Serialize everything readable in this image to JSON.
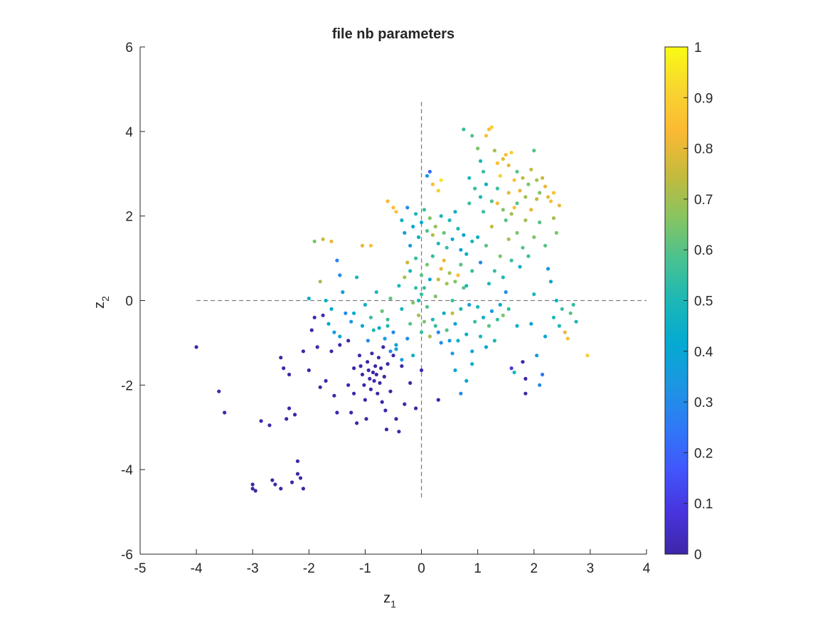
{
  "chart_data": {
    "type": "scatter",
    "title": "file nb parameters",
    "xlabel": {
      "base": "z",
      "sub": "1"
    },
    "ylabel": {
      "base": "z",
      "sub": "2"
    },
    "xlim": [
      -5,
      4
    ],
    "ylim": [
      -6,
      6
    ],
    "xticks": [
      -5,
      -4,
      -3,
      -2,
      -1,
      0,
      1,
      2,
      3,
      4
    ],
    "yticks": [
      -6,
      -4,
      -2,
      0,
      2,
      4,
      6
    ],
    "grid": false,
    "legend": "none",
    "reference_lines": {
      "vertical": {
        "x": 0,
        "y_range": [
          -4.7,
          4.7
        ],
        "style": "dashed",
        "color": "#808080"
      },
      "horizontal": {
        "y": 0,
        "x_range": [
          -4,
          4
        ],
        "style": "dashed",
        "color": "#808080"
      }
    },
    "colorbar": {
      "colormap": "parula",
      "limits": [
        0,
        1
      ],
      "ticks": [
        "0",
        "0.1",
        "0.2",
        "0.3",
        "0.4",
        "0.5",
        "0.6",
        "0.7",
        "0.8",
        "0.9",
        "1"
      ],
      "stops": [
        "#3e26a8",
        "#4734de",
        "#4256fc",
        "#2f79f6",
        "#1c96e2",
        "#04aad1",
        "#1cb7b6",
        "#4ac290",
        "#8ac45f",
        "#c6ba3c",
        "#fbb934",
        "#f8d52f",
        "#f9fb15"
      ]
    },
    "points": [
      [
        -4.0,
        -1.1,
        0.0
      ],
      [
        -3.6,
        -2.15,
        0.0
      ],
      [
        -3.5,
        -2.65,
        0.0
      ],
      [
        -3.0,
        -4.35,
        0.0
      ],
      [
        -3.0,
        -4.45,
        0.0
      ],
      [
        -2.95,
        -4.5,
        0.0
      ],
      [
        -2.85,
        -2.85,
        0.0
      ],
      [
        -2.7,
        -2.95,
        0.0
      ],
      [
        -2.65,
        -4.25,
        0.0
      ],
      [
        -2.6,
        -4.35,
        0.0
      ],
      [
        -2.5,
        -4.45,
        0.0
      ],
      [
        -2.4,
        -2.8,
        0.0
      ],
      [
        -2.35,
        -2.55,
        0.0
      ],
      [
        -2.3,
        -4.3,
        0.0
      ],
      [
        -2.25,
        -2.7,
        0.0
      ],
      [
        -2.2,
        -4.1,
        0.0
      ],
      [
        -2.15,
        -4.2,
        0.0
      ],
      [
        -2.2,
        -3.8,
        0.0
      ],
      [
        -2.1,
        -4.45,
        0.0
      ],
      [
        -2.5,
        -1.35,
        0.0
      ],
      [
        -2.45,
        -1.6,
        0.0
      ],
      [
        -2.35,
        -1.75,
        0.0
      ],
      [
        -2.1,
        -1.2,
        0.0
      ],
      [
        -2.0,
        -1.65,
        0.0
      ],
      [
        -1.95,
        -0.7,
        0.0
      ],
      [
        -1.9,
        -0.4,
        0.02
      ],
      [
        -1.85,
        -1.1,
        0.0
      ],
      [
        -1.8,
        -2.05,
        0.0
      ],
      [
        -1.75,
        -0.35,
        0.02
      ],
      [
        -1.7,
        -1.9,
        0.0
      ],
      [
        -1.6,
        -1.2,
        0.0
      ],
      [
        -1.55,
        -2.25,
        0.0
      ],
      [
        -1.5,
        -2.65,
        0.0
      ],
      [
        -1.45,
        -1.05,
        0.0
      ],
      [
        -1.3,
        -0.95,
        0.0
      ],
      [
        -1.3,
        -2.0,
        0.0
      ],
      [
        -1.25,
        -2.65,
        0.0
      ],
      [
        -1.2,
        -1.6,
        0.0
      ],
      [
        -1.2,
        -2.2,
        0.0
      ],
      [
        -1.15,
        -2.9,
        0.0
      ],
      [
        -1.1,
        -1.3,
        0.0
      ],
      [
        -1.08,
        -1.55,
        0.0
      ],
      [
        -1.05,
        -1.75,
        0.0
      ],
      [
        -1.02,
        -2.0,
        0.0
      ],
      [
        -1.0,
        -2.35,
        0.0
      ],
      [
        -0.98,
        -2.8,
        0.0
      ],
      [
        -0.96,
        -1.45,
        0.0
      ],
      [
        -0.94,
        -1.65,
        0.0
      ],
      [
        -0.92,
        -1.85,
        0.0
      ],
      [
        -0.9,
        -2.1,
        0.0
      ],
      [
        -0.88,
        -1.25,
        0.0
      ],
      [
        -0.86,
        -1.7,
        0.0
      ],
      [
        -0.84,
        -1.9,
        0.0
      ],
      [
        -0.82,
        -1.55,
        0.0
      ],
      [
        -0.8,
        -1.75,
        0.0
      ],
      [
        -0.78,
        -2.2,
        0.0
      ],
      [
        -0.76,
        -1.35,
        0.0
      ],
      [
        -0.74,
        -1.95,
        0.0
      ],
      [
        -0.72,
        -1.6,
        0.0
      ],
      [
        -0.7,
        -2.4,
        0.0
      ],
      [
        -0.68,
        -1.1,
        0.0
      ],
      [
        -0.66,
        -1.8,
        0.0
      ],
      [
        -0.64,
        -2.6,
        0.0
      ],
      [
        -0.62,
        -3.05,
        0.0
      ],
      [
        -0.6,
        -1.5,
        0.0
      ],
      [
        -0.55,
        -2.15,
        0.0
      ],
      [
        -0.5,
        -1.3,
        0.0
      ],
      [
        -0.45,
        -2.8,
        0.0
      ],
      [
        -0.4,
        -3.1,
        0.0
      ],
      [
        -0.35,
        -1.55,
        0.0
      ],
      [
        -0.3,
        -2.45,
        0.0
      ],
      [
        -0.2,
        -1.95,
        0.0
      ],
      [
        -0.1,
        -2.55,
        0.0
      ],
      [
        0.0,
        -1.65,
        0.02
      ],
      [
        -1.35,
        -0.3,
        0.3
      ],
      [
        -1.4,
        0.2,
        0.35
      ],
      [
        -1.45,
        0.6,
        0.3
      ],
      [
        -1.5,
        0.95,
        0.28
      ],
      [
        -1.6,
        -0.2,
        0.4
      ],
      [
        -1.7,
        0.0,
        0.45
      ],
      [
        -1.8,
        0.45,
        0.7
      ],
      [
        -2.0,
        0.05,
        0.45
      ],
      [
        -1.9,
        1.4,
        0.65
      ],
      [
        -1.75,
        1.45,
        0.75
      ],
      [
        -1.6,
        1.4,
        0.8
      ],
      [
        -1.15,
        0.55,
        0.5
      ],
      [
        -1.05,
        1.3,
        0.8
      ],
      [
        -0.9,
        1.3,
        0.85
      ],
      [
        -1.2,
        -0.3,
        0.42
      ],
      [
        -1.0,
        -0.1,
        0.45
      ],
      [
        -0.9,
        -0.4,
        0.55
      ],
      [
        -0.8,
        0.2,
        0.5
      ],
      [
        -0.75,
        -0.65,
        0.4
      ],
      [
        -0.7,
        -0.25,
        0.62
      ],
      [
        -0.6,
        -0.45,
        0.55
      ],
      [
        -0.55,
        0.05,
        0.6
      ],
      [
        -0.5,
        -0.75,
        0.3
      ],
      [
        -0.45,
        -1.05,
        0.38
      ],
      [
        -0.4,
        0.35,
        0.5
      ],
      [
        -0.35,
        -0.2,
        0.48
      ],
      [
        -0.3,
        0.55,
        0.7
      ],
      [
        -0.25,
        0.9,
        0.75
      ],
      [
        -0.2,
        -0.55,
        0.6
      ],
      [
        -0.15,
        -0.05,
        0.65
      ],
      [
        -0.1,
        0.3,
        0.55
      ],
      [
        -0.05,
        -0.35,
        0.7
      ],
      [
        0.0,
        0.15,
        0.55
      ],
      [
        -0.6,
        2.35,
        0.82
      ],
      [
        -0.5,
        2.2,
        0.84
      ],
      [
        -0.45,
        2.1,
        0.86
      ],
      [
        -0.35,
        1.9,
        0.45
      ],
      [
        -0.3,
        1.6,
        0.35
      ],
      [
        -0.25,
        2.2,
        0.3
      ],
      [
        -0.2,
        1.3,
        0.38
      ],
      [
        -0.15,
        1.75,
        0.4
      ],
      [
        -0.1,
        2.05,
        0.5
      ],
      [
        -0.05,
        1.5,
        0.45
      ],
      [
        0.0,
        1.85,
        0.42
      ],
      [
        0.05,
        2.15,
        0.55
      ],
      [
        0.1,
        1.65,
        0.6
      ],
      [
        0.15,
        1.95,
        0.65
      ],
      [
        0.2,
        1.55,
        0.72
      ],
      [
        0.25,
        1.75,
        0.68
      ],
      [
        0.3,
        1.35,
        0.5
      ],
      [
        0.35,
        2.0,
        0.48
      ],
      [
        0.4,
        1.6,
        0.62
      ],
      [
        0.45,
        1.25,
        0.55
      ],
      [
        0.5,
        1.9,
        0.5
      ],
      [
        0.55,
        1.45,
        0.42
      ],
      [
        0.6,
        2.1,
        0.45
      ],
      [
        0.65,
        1.7,
        0.5
      ],
      [
        0.7,
        1.2,
        0.38
      ],
      [
        0.75,
        1.55,
        0.4
      ],
      [
        0.8,
        1.1,
        0.44
      ],
      [
        0.85,
        2.3,
        0.55
      ],
      [
        0.9,
        1.4,
        0.48
      ],
      [
        0.1,
        2.95,
        0.35
      ],
      [
        0.2,
        2.75,
        0.85
      ],
      [
        0.3,
        2.6,
        0.9
      ],
      [
        0.35,
        2.85,
        0.95
      ],
      [
        0.15,
        3.05,
        0.2
      ],
      [
        0.05,
        0.3,
        0.55
      ],
      [
        0.1,
        -0.15,
        0.6
      ],
      [
        0.15,
        0.5,
        0.4
      ],
      [
        0.2,
        -0.45,
        0.5
      ],
      [
        0.25,
        0.1,
        0.65
      ],
      [
        0.3,
        -0.75,
        0.3
      ],
      [
        0.35,
        0.75,
        0.8
      ],
      [
        0.4,
        -0.3,
        0.45
      ],
      [
        0.45,
        0.4,
        0.7
      ],
      [
        0.5,
        -0.95,
        0.35
      ],
      [
        0.55,
        0.0,
        0.55
      ],
      [
        0.6,
        -0.55,
        0.4
      ],
      [
        0.65,
        0.6,
        0.85
      ],
      [
        0.7,
        -0.2,
        0.5
      ],
      [
        0.75,
        0.3,
        0.6
      ],
      [
        0.8,
        -0.8,
        0.45
      ],
      [
        0.85,
        -0.1,
        0.35
      ],
      [
        0.9,
        -1.2,
        0.4
      ],
      [
        0.3,
        -2.35,
        0.0
      ],
      [
        0.55,
        -1.25,
        0.35
      ],
      [
        0.6,
        -1.65,
        0.4
      ],
      [
        0.7,
        -2.2,
        0.3
      ],
      [
        0.8,
        -1.9,
        0.4
      ],
      [
        0.9,
        -1.5,
        0.45
      ],
      [
        0.95,
        -0.5,
        0.55
      ],
      [
        1.0,
        -0.15,
        0.5
      ],
      [
        1.05,
        -0.85,
        0.5
      ],
      [
        1.1,
        -0.4,
        0.45
      ],
      [
        1.15,
        -1.1,
        0.4
      ],
      [
        1.2,
        -0.6,
        0.6
      ],
      [
        1.25,
        -0.25,
        0.35
      ],
      [
        1.3,
        -0.95,
        0.5
      ],
      [
        1.35,
        -0.45,
        0.55
      ],
      [
        1.4,
        -0.1,
        0.4
      ],
      [
        1.45,
        -0.35,
        0.65
      ],
      [
        1.5,
        0.2,
        0.3
      ],
      [
        1.55,
        -0.2,
        0.55
      ],
      [
        1.6,
        -1.6,
        0.1
      ],
      [
        1.65,
        -1.7,
        0.5
      ],
      [
        1.7,
        -0.6,
        0.45
      ],
      [
        1.8,
        -1.45,
        0.0
      ],
      [
        1.85,
        -1.85,
        0.0
      ],
      [
        1.85,
        -2.2,
        0.0
      ],
      [
        1.95,
        -0.55,
        0.4
      ],
      [
        2.0,
        0.15,
        0.5
      ],
      [
        2.05,
        -1.3,
        0.35
      ],
      [
        2.1,
        -2.0,
        0.3
      ],
      [
        2.15,
        -1.75,
        0.25
      ],
      [
        2.2,
        -0.85,
        0.4
      ],
      [
        2.25,
        0.75,
        0.35
      ],
      [
        2.3,
        0.45,
        0.4
      ],
      [
        2.35,
        -0.4,
        0.5
      ],
      [
        2.4,
        0.0,
        0.45
      ],
      [
        2.45,
        -0.6,
        0.5
      ],
      [
        2.5,
        -0.2,
        0.55
      ],
      [
        2.55,
        -0.75,
        0.8
      ],
      [
        2.6,
        -0.9,
        0.85
      ],
      [
        2.65,
        -0.3,
        0.6
      ],
      [
        2.7,
        -0.1,
        0.55
      ],
      [
        2.75,
        -0.5,
        0.5
      ],
      [
        2.95,
        -1.3,
        0.9
      ],
      [
        1.0,
        1.5,
        0.45
      ],
      [
        1.05,
        0.9,
        0.3
      ],
      [
        1.1,
        2.1,
        0.55
      ],
      [
        1.15,
        1.3,
        0.6
      ],
      [
        1.2,
        0.4,
        0.5
      ],
      [
        1.25,
        1.75,
        0.75
      ],
      [
        1.3,
        0.7,
        0.55
      ],
      [
        1.35,
        2.3,
        0.82
      ],
      [
        1.4,
        1.05,
        0.65
      ],
      [
        1.45,
        0.55,
        0.5
      ],
      [
        1.5,
        1.9,
        0.6
      ],
      [
        1.55,
        1.45,
        0.7
      ],
      [
        1.6,
        0.95,
        0.55
      ],
      [
        1.65,
        2.2,
        0.85
      ],
      [
        1.7,
        1.6,
        0.65
      ],
      [
        1.75,
        0.8,
        0.45
      ],
      [
        1.8,
        1.25,
        0.6
      ],
      [
        1.85,
        1.9,
        0.7
      ],
      [
        1.9,
        1.05,
        0.55
      ],
      [
        1.95,
        2.15,
        0.8
      ],
      [
        2.0,
        1.5,
        0.65
      ],
      [
        2.05,
        2.4,
        0.75
      ],
      [
        2.1,
        1.85,
        0.6
      ],
      [
        2.2,
        2.7,
        0.8
      ],
      [
        2.3,
        2.35,
        0.85
      ],
      [
        2.4,
        1.6,
        0.65
      ],
      [
        2.45,
        2.25,
        0.8
      ],
      [
        2.2,
        1.3,
        0.6
      ],
      [
        2.35,
        1.95,
        0.7
      ],
      [
        0.75,
        4.05,
        0.55
      ],
      [
        0.9,
        3.9,
        0.6
      ],
      [
        1.0,
        3.6,
        0.65
      ],
      [
        1.05,
        3.3,
        0.5
      ],
      [
        1.1,
        3.05,
        0.55
      ],
      [
        1.15,
        3.9,
        0.85
      ],
      [
        1.2,
        4.05,
        0.85
      ],
      [
        1.25,
        4.1,
        0.9
      ],
      [
        1.3,
        3.55,
        0.7
      ],
      [
        1.35,
        3.25,
        0.85
      ],
      [
        1.4,
        2.95,
        0.9
      ],
      [
        1.45,
        3.35,
        0.8
      ],
      [
        1.5,
        3.45,
        0.85
      ],
      [
        1.55,
        3.2,
        0.8
      ],
      [
        1.6,
        3.5,
        0.9
      ],
      [
        1.65,
        2.85,
        0.85
      ],
      [
        1.7,
        3.05,
        0.6
      ],
      [
        1.75,
        2.6,
        0.8
      ],
      [
        1.8,
        2.9,
        0.75
      ],
      [
        1.85,
        2.45,
        0.7
      ],
      [
        1.9,
        2.75,
        0.65
      ],
      [
        1.95,
        3.1,
        0.75
      ],
      [
        2.0,
        3.55,
        0.6
      ],
      [
        2.05,
        2.85,
        0.7
      ],
      [
        2.1,
        2.55,
        0.65
      ],
      [
        2.15,
        2.9,
        0.75
      ],
      [
        2.25,
        2.45,
        0.8
      ],
      [
        2.35,
        2.55,
        0.85
      ],
      [
        0.85,
        2.9,
        0.5
      ],
      [
        0.95,
        2.65,
        0.55
      ],
      [
        1.05,
        2.45,
        0.5
      ],
      [
        1.15,
        2.75,
        0.45
      ],
      [
        1.25,
        2.35,
        0.6
      ],
      [
        1.35,
        2.65,
        0.55
      ],
      [
        1.45,
        2.15,
        0.65
      ],
      [
        1.55,
        2.55,
        0.8
      ],
      [
        1.6,
        2.05,
        0.7
      ],
      [
        1.7,
        2.3,
        0.6
      ],
      [
        -0.25,
        -0.9,
        0.3
      ],
      [
        -0.15,
        -1.3,
        0.45
      ],
      [
        -0.05,
        0.0,
        0.5
      ],
      [
        0.0,
        -0.75,
        0.55
      ],
      [
        0.05,
        -0.5,
        0.65
      ],
      [
        0.15,
        -0.85,
        0.7
      ],
      [
        0.25,
        -0.6,
        0.55
      ],
      [
        0.35,
        -1.0,
        0.3
      ],
      [
        0.45,
        -0.7,
        0.6
      ],
      [
        0.55,
        -0.3,
        0.75
      ],
      [
        0.65,
        -0.95,
        0.45
      ],
      [
        -0.65,
        -0.9,
        0.35
      ],
      [
        -0.85,
        -0.7,
        0.5
      ],
      [
        -1.05,
        -0.6,
        0.4
      ],
      [
        -1.25,
        -0.5,
        0.35
      ],
      [
        -1.55,
        -0.75,
        0.35
      ],
      [
        -1.65,
        -0.55,
        0.4
      ],
      [
        -1.45,
        -0.85,
        0.4
      ],
      [
        -0.95,
        -0.95,
        0.3
      ],
      [
        -0.55,
        -1.2,
        0.3
      ],
      [
        -0.35,
        -1.4,
        0.35
      ],
      [
        -0.45,
        -1.15,
        0.4
      ],
      [
        -0.6,
        -0.6,
        0.5
      ],
      [
        -0.2,
        0.7,
        0.5
      ],
      [
        -0.1,
        1.0,
        0.55
      ],
      [
        0.0,
        0.6,
        0.6
      ],
      [
        0.1,
        0.85,
        0.65
      ],
      [
        0.2,
        1.05,
        0.55
      ],
      [
        0.3,
        0.5,
        0.75
      ],
      [
        0.4,
        0.95,
        0.8
      ],
      [
        0.5,
        0.65,
        0.7
      ],
      [
        0.6,
        0.45,
        0.65
      ],
      [
        0.7,
        0.85,
        0.6
      ],
      [
        0.8,
        0.35,
        0.5
      ],
      [
        0.9,
        0.7,
        0.55
      ]
    ]
  }
}
